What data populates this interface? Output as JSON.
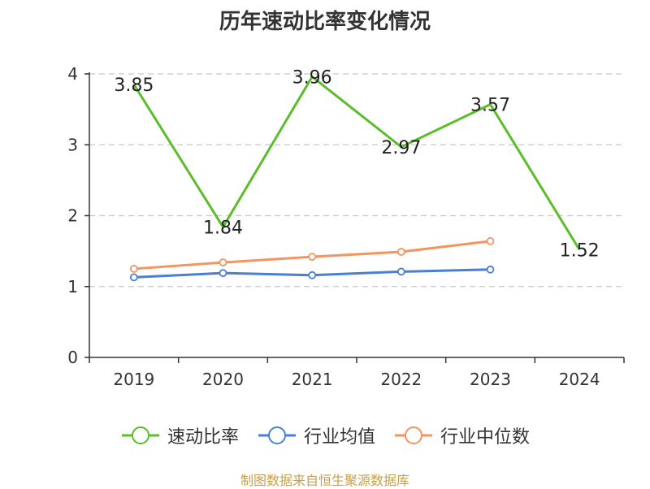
{
  "title": "历年速动比率变化情况",
  "source": "制图数据来自恒生聚源数据库",
  "chart_data": {
    "type": "line",
    "categories": [
      "2019",
      "2020",
      "2021",
      "2022",
      "2023",
      "2024"
    ],
    "ylim": [
      0,
      4
    ],
    "yticks": [
      0,
      1,
      2,
      3,
      4
    ],
    "grid": "horizontal-dashed",
    "legend_position": "bottom",
    "series": [
      {
        "name": "速动比率",
        "color": "#5cbd2a",
        "values": [
          3.85,
          1.84,
          3.96,
          2.97,
          3.57,
          1.52
        ],
        "labels": true
      },
      {
        "name": "行业均值",
        "color": "#4a7fd6",
        "values": [
          1.13,
          1.19,
          1.16,
          1.21,
          1.24,
          null
        ],
        "labels": false
      },
      {
        "name": "行业中位数",
        "color": "#f39461",
        "values": [
          1.25,
          1.34,
          1.42,
          1.49,
          1.64,
          null
        ],
        "labels": false
      }
    ]
  }
}
